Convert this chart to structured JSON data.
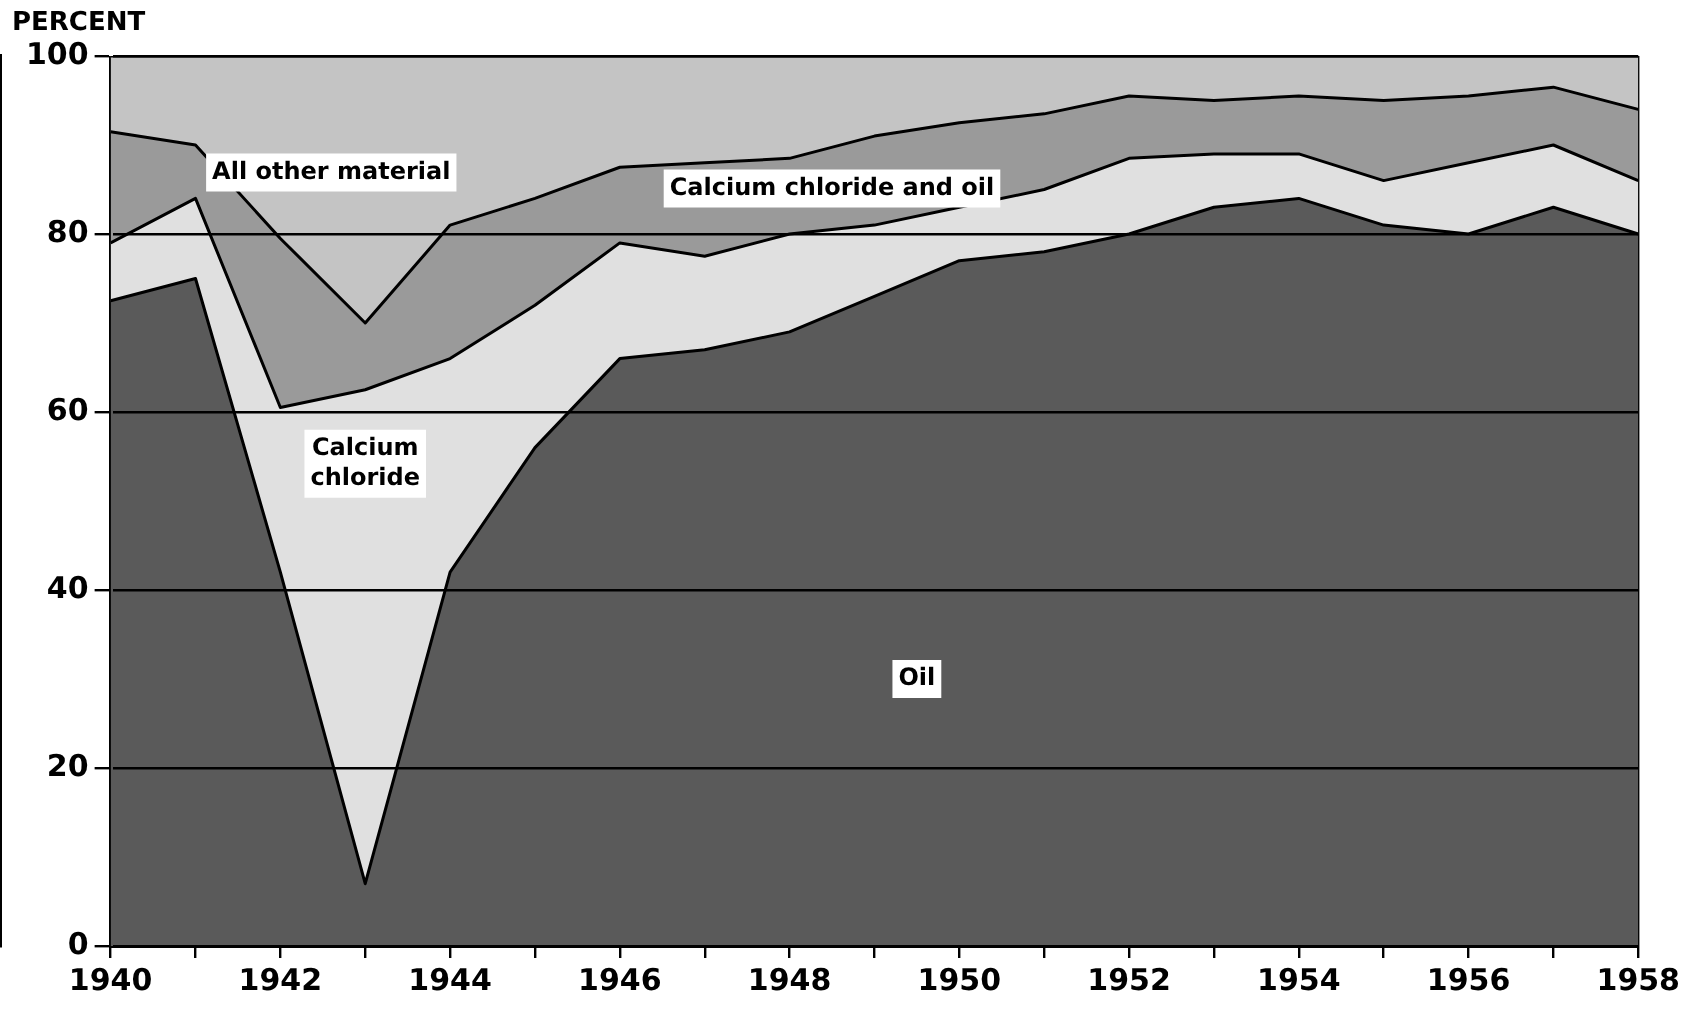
{
  "chart_data": {
    "type": "area",
    "stacked": true,
    "ylabel": "PERCENT",
    "x": [
      1940,
      1941,
      1942,
      1943,
      1944,
      1945,
      1946,
      1947,
      1948,
      1949,
      1950,
      1951,
      1952,
      1953,
      1954,
      1955,
      1956,
      1957,
      1958
    ],
    "series": [
      {
        "name": "Oil",
        "color": "#5a5a5a",
        "values": [
          72.5,
          75,
          42,
          7,
          42,
          56,
          66,
          67,
          69,
          73,
          77,
          78,
          80,
          83,
          84,
          81,
          80,
          83,
          80
        ]
      },
      {
        "name": "Calcium chloride",
        "color": "#e0e0e0",
        "values": [
          6.5,
          9,
          18.5,
          55.5,
          24,
          16,
          13,
          10.5,
          11,
          8,
          6,
          7,
          8.5,
          6,
          5,
          5,
          8,
          7,
          6
        ]
      },
      {
        "name": "Calcium chloride and oil",
        "color": "#9a9a9a",
        "values": [
          12.5,
          6,
          19,
          7.5,
          15,
          12,
          8.5,
          10.5,
          8.5,
          10,
          9.5,
          8.5,
          7,
          6,
          6.5,
          9,
          7.5,
          6.5,
          8
        ]
      },
      {
        "name": "All other material",
        "color": "#c4c4c4",
        "values": [
          8.5,
          10,
          20.5,
          30,
          19,
          16,
          12.5,
          12,
          11.5,
          9,
          7.5,
          6.5,
          4.5,
          5,
          4.5,
          5,
          4.5,
          3.5,
          6
        ]
      }
    ],
    "xlim": [
      1940,
      1958
    ],
    "xticks": [
      1940,
      {
        "value": 1941,
        "label": null
      },
      1942,
      {
        "value": 1943,
        "label": null
      },
      1944,
      {
        "value": 1945,
        "label": null
      },
      1946,
      {
        "value": 1947,
        "label": null
      },
      1948,
      {
        "value": 1949,
        "label": null
      },
      1950,
      {
        "value": 1951,
        "label": null
      },
      1952,
      {
        "value": 1953,
        "label": null
      },
      1954,
      {
        "value": 1955,
        "label": null
      },
      1956,
      {
        "value": 1957,
        "label": null
      },
      1958
    ],
    "ylim": [
      0,
      100
    ],
    "yticks": [
      0,
      20,
      40,
      60,
      80,
      100
    ],
    "grid": true,
    "legend": false
  }
}
